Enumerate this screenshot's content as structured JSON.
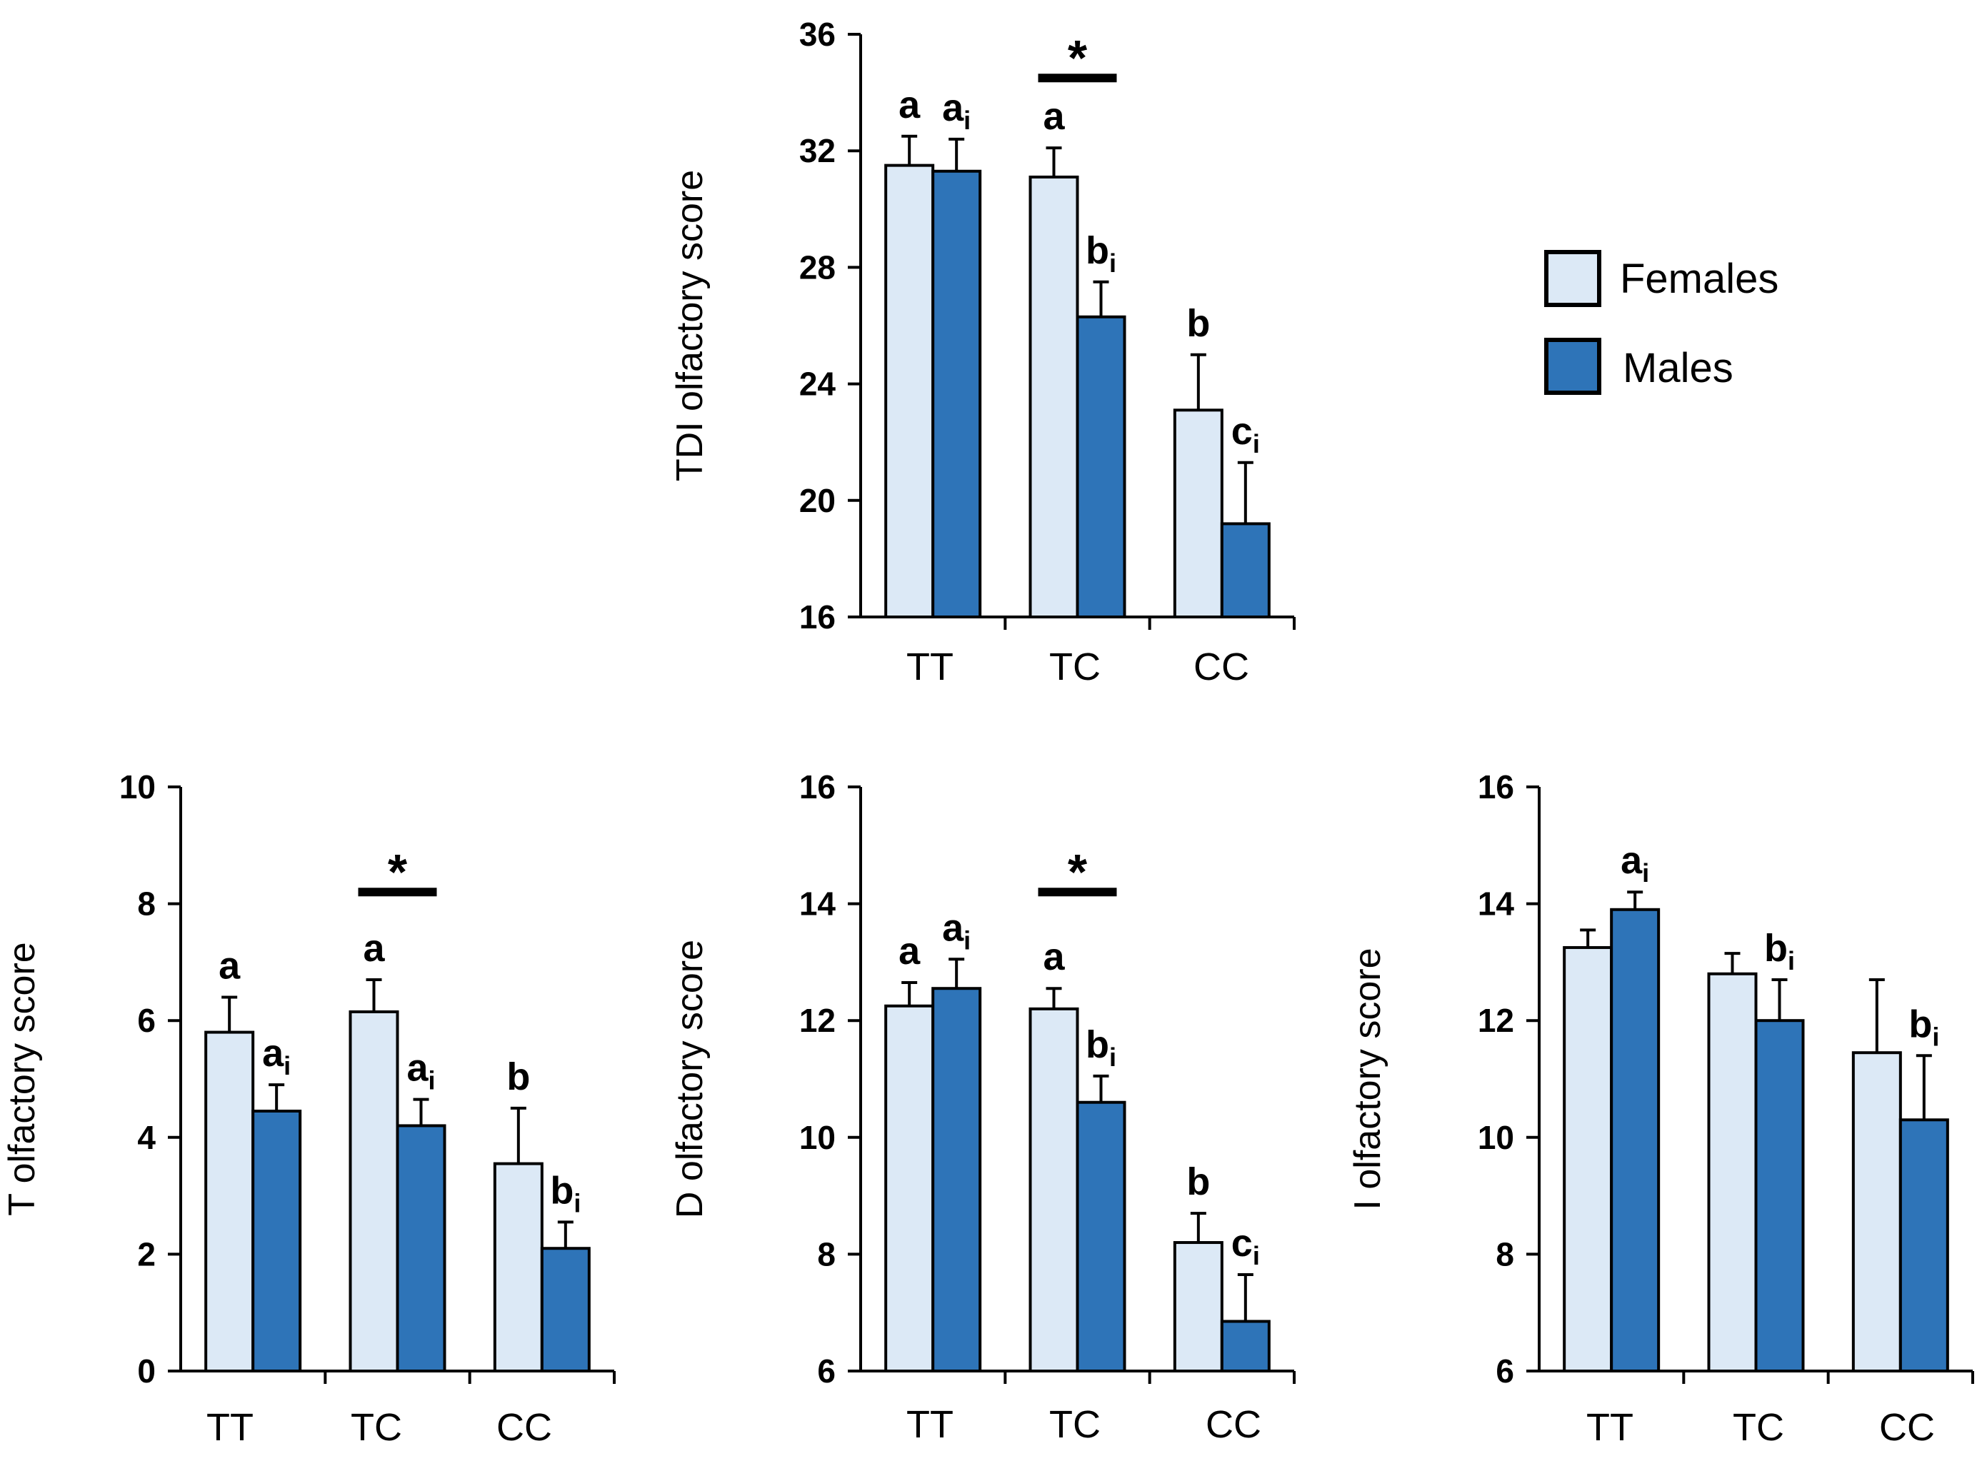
{
  "legend": {
    "items": [
      {
        "label": "Females",
        "color": "#dce9f6"
      },
      {
        "label": "Males",
        "color": "#2e74b8"
      }
    ]
  },
  "chart_data": [
    {
      "id": "tdi",
      "type": "bar",
      "title": "",
      "xlabel": "",
      "ylabel": "TDI olfactory score",
      "ylim": [
        16,
        36
      ],
      "yticks": [
        16,
        20,
        24,
        28,
        32,
        36
      ],
      "categories": [
        "TT",
        "TC",
        "CC"
      ],
      "series": [
        {
          "name": "Females",
          "values": [
            31.5,
            31.1,
            23.1
          ],
          "errors": [
            1.0,
            1.0,
            1.9
          ],
          "labels": [
            "a",
            "a",
            "b"
          ],
          "label_subs": [
            "",
            "",
            ""
          ]
        },
        {
          "name": "Males",
          "values": [
            31.3,
            26.3,
            19.2
          ],
          "errors": [
            1.1,
            1.2,
            2.1
          ],
          "labels": [
            "a",
            "b",
            "c"
          ],
          "label_subs": [
            "i",
            "i",
            "i"
          ]
        }
      ],
      "significance": [
        {
          "category": "TC",
          "symbol": "*",
          "y": 34.5
        }
      ]
    },
    {
      "id": "t",
      "type": "bar",
      "title": "",
      "xlabel": "",
      "ylabel": "T olfactory score",
      "ylim": [
        0,
        10
      ],
      "yticks": [
        0,
        2,
        4,
        6,
        8,
        10
      ],
      "categories": [
        "TT",
        "TC",
        "CC"
      ],
      "series": [
        {
          "name": "Females",
          "values": [
            5.8,
            6.15,
            3.55
          ],
          "errors": [
            0.6,
            0.55,
            0.95
          ],
          "labels": [
            "a",
            "a",
            "b"
          ],
          "label_subs": [
            "",
            "",
            ""
          ]
        },
        {
          "name": "Males",
          "values": [
            4.45,
            4.2,
            2.1
          ],
          "errors": [
            0.45,
            0.45,
            0.45
          ],
          "labels": [
            "a",
            "a",
            "b"
          ],
          "label_subs": [
            "i",
            "i",
            "i"
          ]
        }
      ],
      "significance": [
        {
          "category": "TC",
          "symbol": "*",
          "y": 8.2
        }
      ]
    },
    {
      "id": "d",
      "type": "bar",
      "title": "",
      "xlabel": "",
      "ylabel": "D olfactory score",
      "ylim": [
        6,
        16
      ],
      "yticks": [
        6,
        8,
        10,
        12,
        14,
        16
      ],
      "categories": [
        "TT",
        "TC",
        "CC"
      ],
      "series": [
        {
          "name": "Females",
          "values": [
            12.25,
            12.2,
            8.2
          ],
          "errors": [
            0.4,
            0.35,
            0.5
          ],
          "labels": [
            "a",
            "a",
            "b"
          ],
          "label_subs": [
            "",
            "",
            ""
          ]
        },
        {
          "name": "Males",
          "values": [
            12.55,
            10.6,
            6.85
          ],
          "errors": [
            0.5,
            0.45,
            0.8
          ],
          "labels": [
            "a",
            "b",
            "c"
          ],
          "label_subs": [
            "i",
            "i",
            "i"
          ]
        }
      ],
      "significance": [
        {
          "category": "TC",
          "symbol": "*",
          "y": 14.2
        }
      ]
    },
    {
      "id": "i",
      "type": "bar",
      "title": "",
      "xlabel": "",
      "ylabel": "I olfactory score",
      "ylim": [
        6,
        16
      ],
      "yticks": [
        6,
        8,
        10,
        12,
        14,
        16
      ],
      "categories": [
        "TT",
        "TC",
        "CC"
      ],
      "series": [
        {
          "name": "Females",
          "values": [
            13.25,
            12.8,
            11.45
          ],
          "errors": [
            0.3,
            0.35,
            1.25
          ],
          "labels": [
            "",
            "",
            ""
          ],
          "label_subs": [
            "",
            "",
            ""
          ]
        },
        {
          "name": "Males",
          "values": [
            13.9,
            12.0,
            10.3
          ],
          "errors": [
            0.3,
            0.7,
            1.1
          ],
          "labels": [
            "a",
            "b",
            "b"
          ],
          "label_subs": [
            "i",
            "i",
            "i"
          ]
        }
      ],
      "significance": []
    }
  ]
}
